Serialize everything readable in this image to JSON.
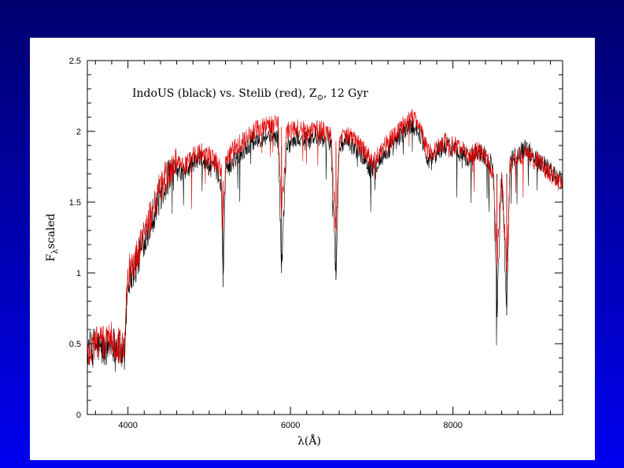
{
  "chart_data": {
    "type": "line",
    "title_parts": {
      "main": "IndoUS (black) vs. Stelib (red), Z",
      "subscript": "⊙",
      "tail": ", 12 Gyr"
    },
    "xlabel": "λ(Å)",
    "ylabel_main": "F",
    "ylabel_sub": "λ",
    "ylabel_tail": "scaled",
    "xlim": [
      3500,
      9350
    ],
    "ylim": [
      0,
      2.5
    ],
    "x_ticks": [
      4000,
      6000,
      8000
    ],
    "x_tick_labels": [
      "4000",
      "6000",
      "8000"
    ],
    "y_ticks": [
      0,
      0.5,
      1,
      1.5,
      2,
      2.5
    ],
    "y_tick_labels": [
      "0",
      "0.5",
      "1",
      "1.5",
      "2",
      "2.5"
    ],
    "grid": false,
    "series": [
      {
        "color": "#000000",
        "x": [
          3500,
          3600,
          3700,
          3800,
          3900,
          3950,
          4000,
          4100,
          4200,
          4300,
          4400,
          4500,
          4600,
          4700,
          4800,
          4900,
          5000,
          5100,
          5150,
          5170,
          5200,
          5300,
          5400,
          5500,
          5600,
          5700,
          5800,
          5850,
          5890,
          5950,
          6000,
          6100,
          6200,
          6300,
          6400,
          6500,
          6560,
          6600,
          6700,
          6800,
          6900,
          7000,
          7100,
          7200,
          7300,
          7400,
          7500,
          7550,
          7600,
          7650,
          7700,
          7800,
          7900,
          8000,
          8100,
          8200,
          8300,
          8400,
          8498,
          8542,
          8600,
          8662,
          8700,
          8800,
          8900,
          9000,
          9100,
          9200,
          9350
        ],
        "y": [
          0.45,
          0.5,
          0.45,
          0.52,
          0.45,
          0.4,
          0.95,
          1.05,
          1.25,
          1.4,
          1.55,
          1.68,
          1.72,
          1.7,
          1.78,
          1.8,
          1.75,
          1.72,
          1.6,
          0.9,
          1.7,
          1.8,
          1.85,
          1.92,
          1.95,
          1.97,
          1.96,
          1.95,
          1.0,
          1.9,
          1.92,
          1.95,
          1.93,
          1.96,
          1.95,
          1.92,
          0.95,
          1.9,
          1.92,
          1.88,
          1.82,
          1.72,
          1.8,
          1.86,
          1.92,
          2.0,
          2.05,
          2.02,
          1.98,
          1.88,
          1.8,
          1.85,
          1.9,
          1.88,
          1.85,
          1.8,
          1.86,
          1.83,
          1.75,
          0.7,
          1.75,
          0.7,
          1.78,
          1.85,
          1.88,
          1.82,
          1.78,
          1.72,
          1.65
        ]
      },
      {
        "color": "#e00000",
        "x": [
          3500,
          3600,
          3700,
          3800,
          3900,
          3950,
          4000,
          4100,
          4200,
          4300,
          4400,
          4500,
          4600,
          4700,
          4800,
          4900,
          5000,
          5100,
          5150,
          5170,
          5200,
          5300,
          5400,
          5500,
          5600,
          5700,
          5800,
          5850,
          5890,
          5950,
          6000,
          6100,
          6200,
          6300,
          6400,
          6500,
          6560,
          6600,
          6700,
          6800,
          6900,
          7000,
          7100,
          7200,
          7300,
          7400,
          7500,
          7550,
          7600,
          7650,
          7700,
          7800,
          7900,
          8000,
          8100,
          8200,
          8300,
          8400,
          8498,
          8542,
          8600,
          8662,
          8700,
          8800,
          8900,
          9000,
          9100,
          9200,
          9350
        ],
        "y": [
          0.42,
          0.52,
          0.5,
          0.55,
          0.48,
          0.45,
          1.0,
          1.1,
          1.3,
          1.45,
          1.6,
          1.7,
          1.78,
          1.75,
          1.82,
          1.85,
          1.82,
          1.78,
          1.7,
          1.3,
          1.78,
          1.88,
          1.92,
          1.98,
          2.02,
          2.05,
          2.05,
          2.08,
          1.4,
          2.0,
          2.0,
          2.02,
          2.0,
          2.02,
          2.0,
          1.98,
          1.3,
          1.95,
          1.97,
          1.93,
          1.88,
          1.78,
          1.86,
          1.92,
          1.98,
          2.05,
          2.1,
          2.08,
          2.02,
          1.92,
          1.84,
          1.88,
          1.92,
          1.9,
          1.88,
          1.82,
          1.86,
          1.82,
          1.7,
          1.1,
          1.7,
          1.0,
          1.74,
          1.82,
          1.84,
          1.8,
          1.76,
          1.7,
          1.62
        ]
      }
    ]
  }
}
